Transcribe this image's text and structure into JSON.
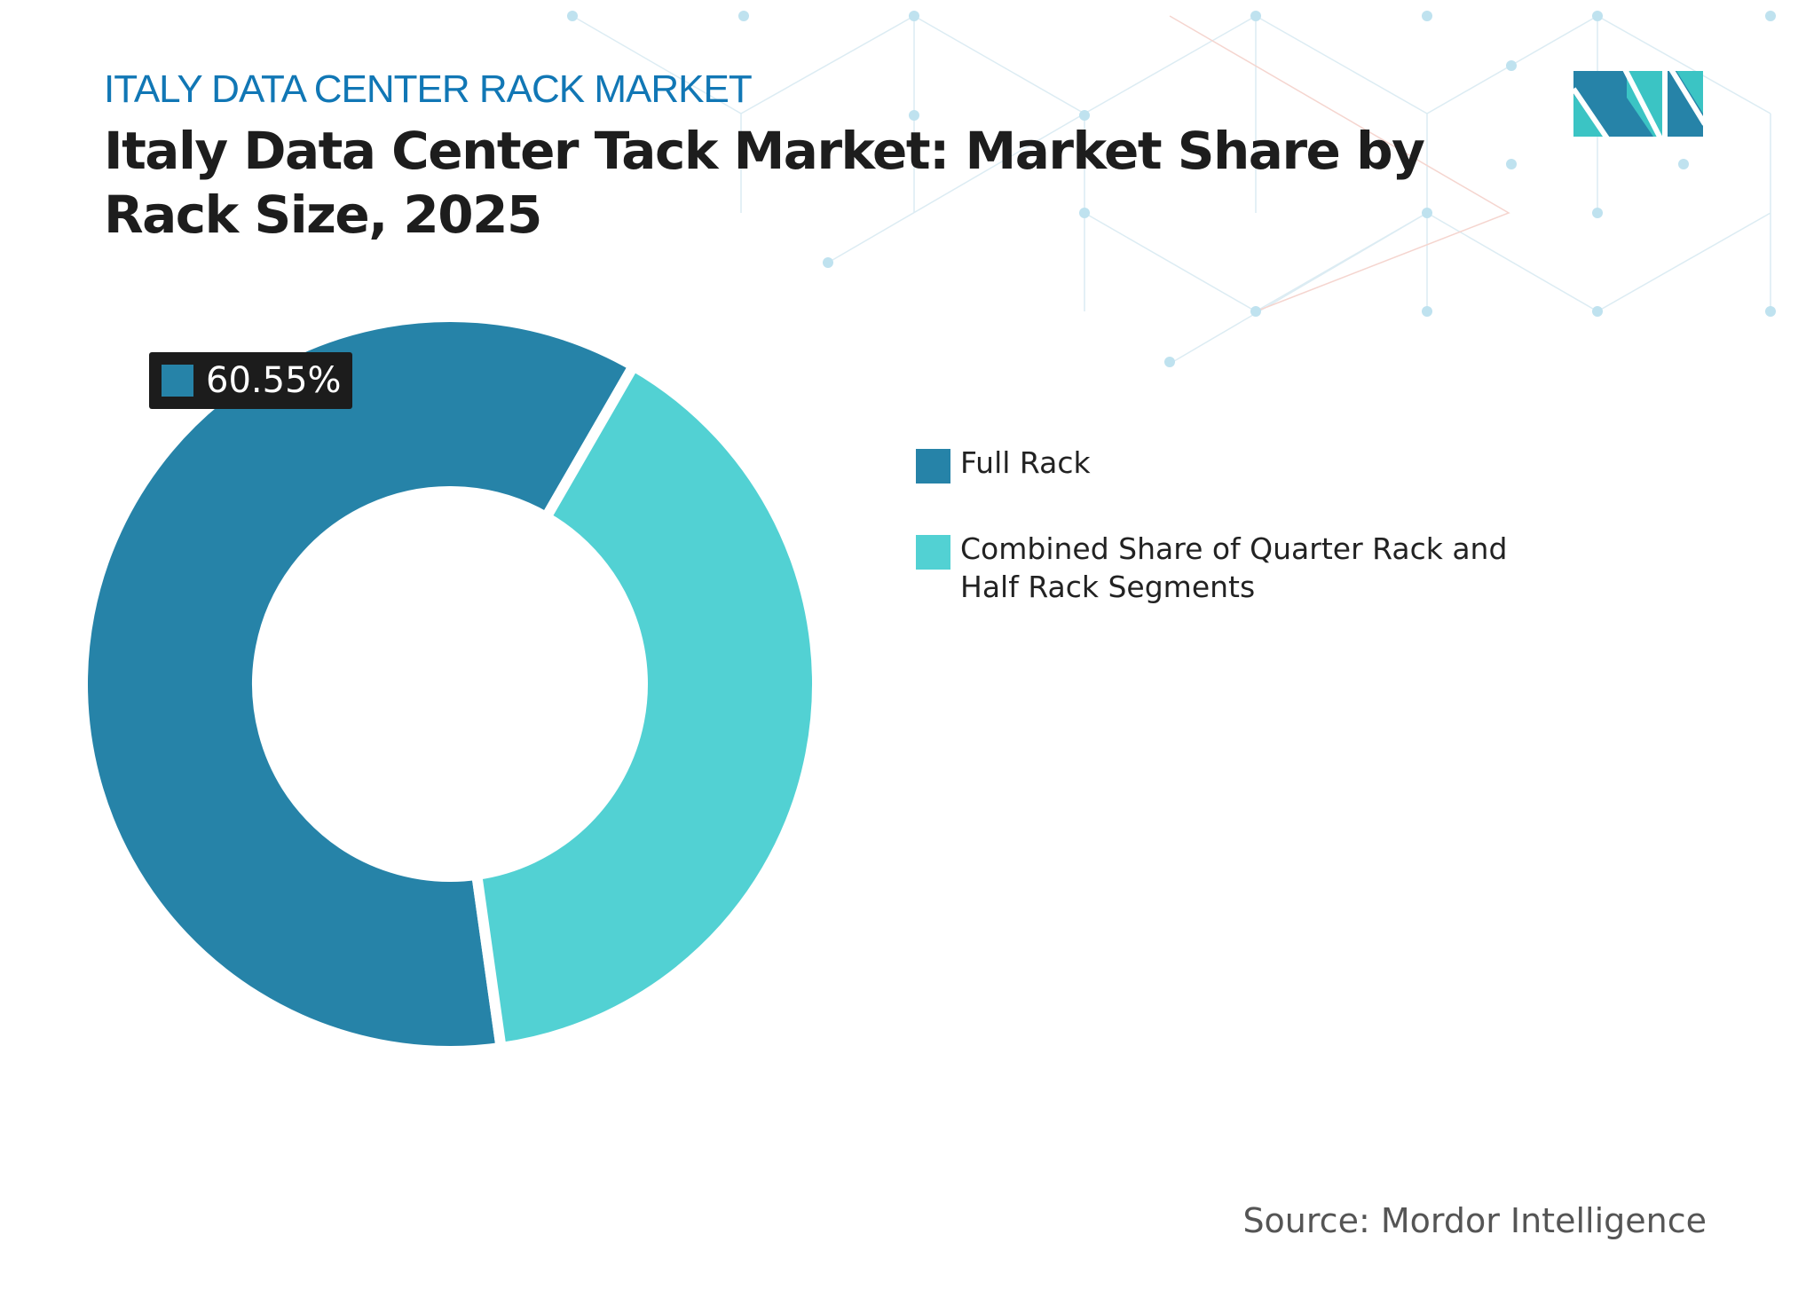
{
  "header": {
    "kicker": "ITALY DATA CENTER RACK MARKET",
    "title": "Italy  Data Center Tack Market: Market Share by Rack Size, 2025"
  },
  "chart_data": {
    "type": "pie",
    "variant": "donut",
    "title": "Italy  Data Center Tack Market: Market Share by Rack Size, 2025",
    "categories": [
      "Full Rack",
      "Combined Share of Quarter Rack and Half Rack Segments"
    ],
    "values": [
      60.55,
      39.45
    ],
    "colors": [
      "#2683a8",
      "#52d1d3"
    ],
    "data_labels": [
      "60.55%"
    ],
    "legend_position": "right"
  },
  "source": "Source: Mordor Intelligence",
  "logo": {
    "brand": "Mordor Intelligence",
    "colors": [
      "#2683a8",
      "#3bc4c4"
    ]
  }
}
